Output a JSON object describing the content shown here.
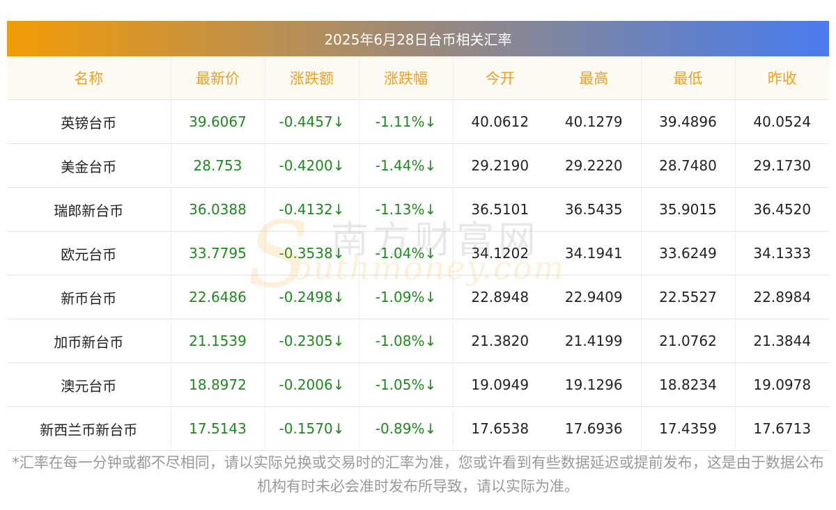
{
  "title": "2025年6月28日台币相关汇率",
  "headers": [
    "名称",
    "最新价",
    "涨跌额",
    "涨跌幅",
    "今开",
    "最高",
    "最低",
    "昨收"
  ],
  "rows": [
    {
      "name": "英镑台币",
      "latest": "39.6067",
      "change": "-0.4457↓",
      "pct": "-1.11%↓",
      "open": "40.0612",
      "high": "40.1279",
      "low": "39.4896",
      "prev": "40.0524"
    },
    {
      "name": "美金台币",
      "latest": "28.753",
      "change": "-0.4200↓",
      "pct": "-1.44%↓",
      "open": "29.2190",
      "high": "29.2220",
      "low": "28.7480",
      "prev": "29.1730"
    },
    {
      "name": "瑞郎新台币",
      "latest": "36.0388",
      "change": "-0.4132↓",
      "pct": "-1.13%↓",
      "open": "36.5101",
      "high": "36.5435",
      "low": "35.9015",
      "prev": "36.4520"
    },
    {
      "name": "欧元台币",
      "latest": "33.7795",
      "change": "-0.3538↓",
      "pct": "-1.04%↓",
      "open": "34.1202",
      "high": "34.1941",
      "low": "33.6249",
      "prev": "34.1333"
    },
    {
      "name": "新币台币",
      "latest": "22.6486",
      "change": "-0.2498↓",
      "pct": "-1.09%↓",
      "open": "22.8948",
      "high": "22.9409",
      "low": "22.5527",
      "prev": "22.8984"
    },
    {
      "name": "加币新台币",
      "latest": "21.1539",
      "change": "-0.2305↓",
      "pct": "-1.08%↓",
      "open": "21.3820",
      "high": "21.4199",
      "low": "21.0762",
      "prev": "21.3844"
    },
    {
      "name": "澳元台币",
      "latest": "18.8972",
      "change": "-0.2006↓",
      "pct": "-1.05%↓",
      "open": "19.0949",
      "high": "19.1296",
      "low": "18.8234",
      "prev": "19.0978"
    },
    {
      "name": "新西兰币新台币",
      "latest": "17.5143",
      "change": "-0.1570↓",
      "pct": "-0.89%↓",
      "open": "17.6538",
      "high": "17.6936",
      "low": "17.4359",
      "prev": "17.6713"
    }
  ],
  "watermark": {
    "cn": "南方财富网",
    "s": "S",
    "en": "outhmoney.com"
  },
  "footnote": "*汇率在每一分钟或都不尽相同，请以实际兑换或交易时的汇率为准，您或许看到有些数据延迟或提前发布，这是由于数据公布机构有时未必会准时发布所导致，请以实际为准。",
  "colors": {
    "header_text": "#f0a020",
    "gain_text": "#1e8a1e",
    "title_gradient": [
      "#f29c06",
      "#4b7cf0"
    ]
  }
}
